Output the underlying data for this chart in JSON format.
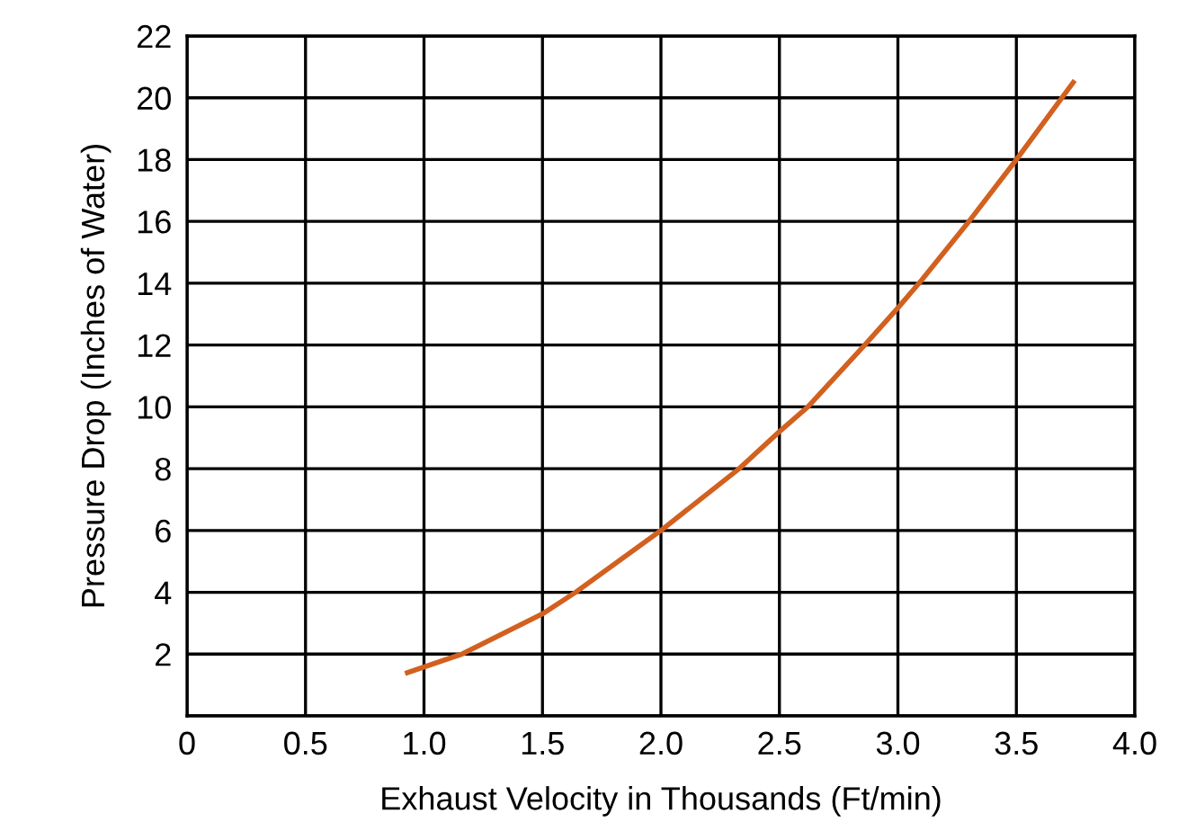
{
  "chart_data": {
    "type": "line",
    "xlabel": "Exhaust Velocity in Thousands (Ft/min)",
    "ylabel": "Pressure Drop (Inches of Water)",
    "series": [
      {
        "color": "#d2601f",
        "x": [
          0.93,
          1.16,
          1.5,
          1.64,
          2.0,
          2.33,
          2.5,
          2.62,
          2.86,
          3.0,
          3.1,
          3.3,
          3.5,
          3.74
        ],
        "values": [
          1.4,
          2.0,
          3.3,
          4.0,
          6.0,
          8.0,
          9.2,
          10.0,
          12.0,
          13.2,
          14.1,
          16.0,
          18.0,
          20.5
        ]
      }
    ],
    "xlim": [
      0,
      4.0
    ],
    "ylim": [
      0,
      22
    ],
    "xticks": [
      0,
      {
        "value": 0.5,
        "label": "0.5"
      },
      {
        "value": 1.0,
        "label": "1.0"
      },
      {
        "value": 1.5,
        "label": "1.5"
      },
      {
        "value": 2.0,
        "label": "2.0"
      },
      {
        "value": 2.5,
        "label": "2.5"
      },
      {
        "value": 3.0,
        "label": "3.0"
      },
      {
        "value": 3.5,
        "label": "3.5"
      },
      {
        "value": 4.0,
        "label": "4.0"
      }
    ],
    "yticks": [
      {
        "value": 0,
        "label": null
      },
      2,
      4,
      6,
      8,
      10,
      12,
      14,
      16,
      18,
      20,
      22
    ],
    "grid": true,
    "marker": "none",
    "line_style": "solid"
  }
}
